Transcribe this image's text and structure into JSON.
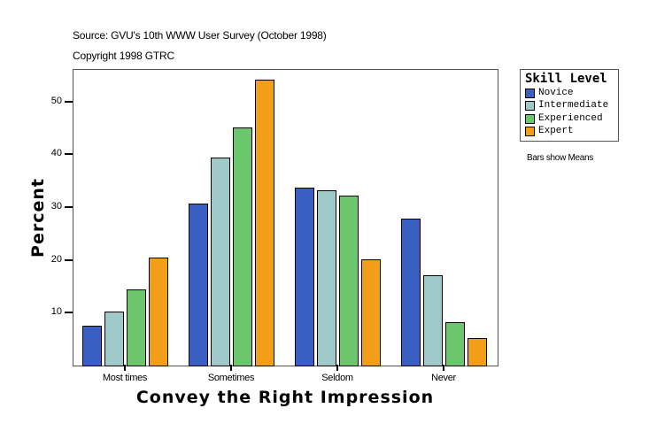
{
  "header": {
    "source": "Source: GVU's 10th WWW User Survey (October 1998)",
    "copyright": "Copyright 1998 GTRC"
  },
  "legend": {
    "title": "Skill Level",
    "items": [
      {
        "label": "Novice",
        "color": "#3a5fc2"
      },
      {
        "label": "Intermediate",
        "color": "#9fc8c8"
      },
      {
        "label": "Experienced",
        "color": "#6cc66c"
      },
      {
        "label": "Expert",
        "color": "#f29e17"
      }
    ]
  },
  "note": "Bars show Means",
  "axes": {
    "ylabel": "Percent",
    "xlabel": "Convey the Right Impression",
    "yticks": [
      "10",
      "20",
      "30",
      "40",
      "50"
    ],
    "xticks": [
      "Most times",
      "Sometimes",
      "Seldom",
      "Never"
    ]
  },
  "chart_data": {
    "type": "bar",
    "title": "",
    "subtitle": "Source: GVU's 10th WWW User Survey (October 1998) / Copyright 1998 GTRC",
    "xlabel": "Convey the Right Impression",
    "ylabel": "Percent",
    "categories": [
      "Most times",
      "Sometimes",
      "Seldom",
      "Never"
    ],
    "series": [
      {
        "name": "Novice",
        "color": "#3a5fc2",
        "values": [
          7.5,
          30.6,
          33.7,
          27.8
        ]
      },
      {
        "name": "Intermediate",
        "color": "#9fc8c8",
        "values": [
          10.2,
          39.4,
          33.2,
          17.1
        ]
      },
      {
        "name": "Experienced",
        "color": "#6cc66c",
        "values": [
          14.4,
          45.0,
          32.2,
          8.2
        ]
      },
      {
        "name": "Expert",
        "color": "#f29e17",
        "values": [
          20.4,
          54.1,
          20.1,
          5.2
        ]
      }
    ],
    "ylim": [
      0,
      56
    ],
    "yticks": [
      10,
      20,
      30,
      40,
      50
    ],
    "legend_title": "Skill Level",
    "legend_position": "right",
    "annotation": "Bars show Means",
    "grid": false
  }
}
